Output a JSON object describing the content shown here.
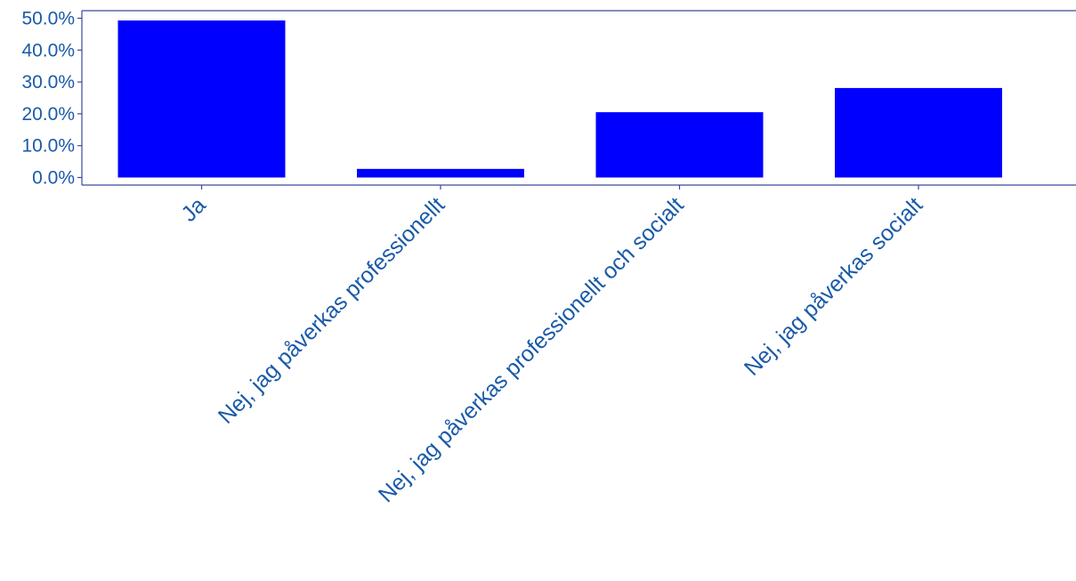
{
  "chart_data": {
    "type": "bar",
    "title": "",
    "xlabel": "",
    "ylabel": "",
    "categories": [
      "Ja",
      "Nej, jag påverkas professionellt",
      "Nej, jag påverkas professionellt och socialt",
      "Nej, jag påverkas socialt"
    ],
    "values": [
      0.493,
      0.027,
      0.205,
      0.281
    ],
    "ylim": [
      0,
      0.52
    ],
    "yticks": [
      0.0,
      0.1,
      0.2,
      0.3,
      0.4,
      0.5
    ],
    "ytick_labels": [
      "0.0%",
      "10.0%",
      "20.0%",
      "30.0%",
      "40.0%",
      "50.0%"
    ],
    "grid": false,
    "legend": "none",
    "colors": {
      "bar": "#0000ff",
      "axis": "#3a4a9a",
      "text": "#1a5aa8"
    }
  }
}
